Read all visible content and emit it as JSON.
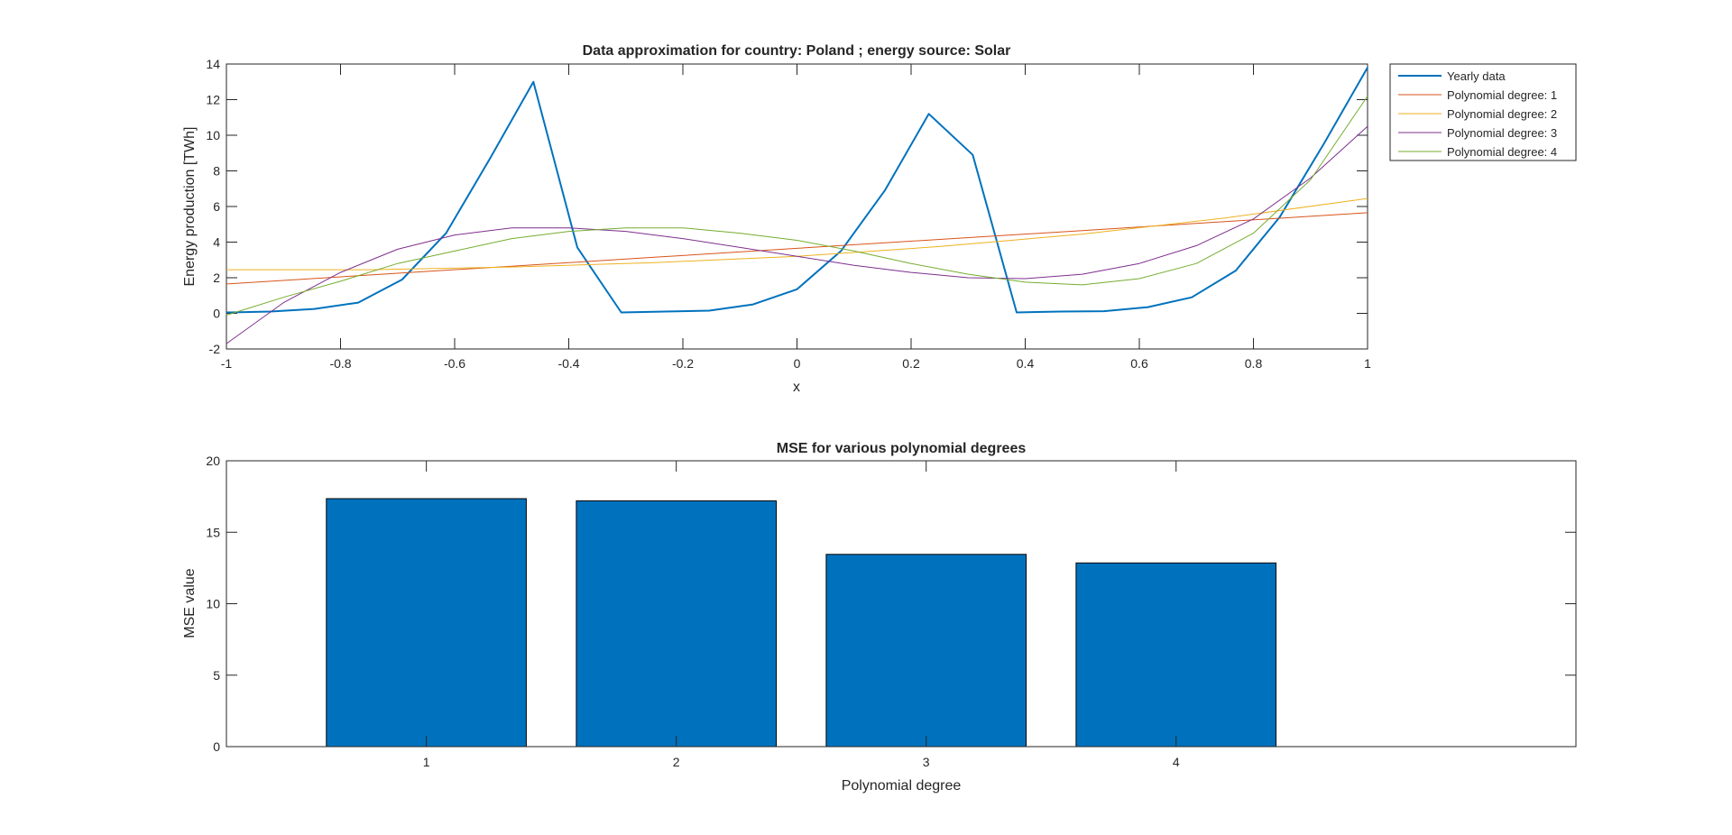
{
  "chart_data": [
    {
      "type": "line",
      "title": "Data approximation for country: Poland ; energy source: Solar",
      "xlabel": "x",
      "ylabel": "Energy production [TWh]",
      "xlim": [
        -1,
        1
      ],
      "ylim": [
        -2,
        14
      ],
      "xticks": [
        -1,
        -0.8,
        -0.6,
        -0.4,
        -0.2,
        0,
        0.2,
        0.4,
        0.6,
        0.8,
        1
      ],
      "xtick_labels": [
        "-1",
        "-0.8",
        "-0.6",
        "-0.4",
        "-0.2",
        "0",
        "0.2",
        "0.4",
        "0.6",
        "0.8",
        "1"
      ],
      "yticks": [
        -2,
        0,
        2,
        4,
        6,
        8,
        10,
        12,
        14
      ],
      "ytick_labels": [
        "-2",
        "0",
        "2",
        "4",
        "6",
        "8",
        "10",
        "12",
        "14"
      ],
      "grid": false,
      "legend_position": "outside-top-right",
      "series": [
        {
          "name": "Yearly data",
          "color": "#0072BD",
          "x": [
            -1,
            -0.923,
            -0.846,
            -0.769,
            -0.692,
            -0.615,
            -0.538,
            -0.462,
            -0.385,
            -0.308,
            -0.231,
            -0.154,
            -0.077,
            0,
            0.077,
            0.154,
            0.231,
            0.308,
            0.385,
            0.462,
            0.538,
            0.615,
            0.692,
            0.769,
            0.846,
            0.923,
            1
          ],
          "y": [
            0.05,
            0.1,
            0.25,
            0.6,
            1.9,
            4.5,
            8.7,
            13.0,
            3.7,
            0.05,
            0.1,
            0.15,
            0.5,
            1.35,
            3.5,
            6.9,
            11.2,
            8.9,
            0.05,
            0.1,
            0.12,
            0.35,
            0.9,
            2.4,
            5.4,
            9.5,
            13.8
          ]
        },
        {
          "name": "Polynomial degree: 1",
          "color": "#D95319",
          "x": [
            -1,
            -0.75,
            -0.5,
            -0.25,
            0,
            0.25,
            0.5,
            0.75,
            1
          ],
          "y": [
            1.65,
            2.15,
            2.65,
            3.15,
            3.65,
            4.15,
            4.65,
            5.15,
            5.65
          ]
        },
        {
          "name": "Polynomial degree: 2",
          "color": "#EDB120",
          "x": [
            -1,
            -0.75,
            -0.5,
            -0.25,
            0,
            0.25,
            0.5,
            0.75,
            1
          ],
          "y": [
            2.45,
            2.45,
            2.6,
            2.85,
            3.2,
            3.75,
            4.45,
            5.35,
            6.45
          ]
        },
        {
          "name": "Polynomial degree: 3",
          "color": "#7E2F8E",
          "x": [
            -1,
            -0.9,
            -0.8,
            -0.7,
            -0.6,
            -0.5,
            -0.4,
            -0.3,
            -0.2,
            -0.1,
            0,
            0.1,
            0.2,
            0.3,
            0.4,
            0.5,
            0.6,
            0.7,
            0.8,
            0.9,
            1
          ],
          "y": [
            -1.7,
            0.6,
            2.3,
            3.6,
            4.4,
            4.8,
            4.8,
            4.6,
            4.2,
            3.7,
            3.2,
            2.7,
            2.3,
            2.0,
            1.95,
            2.2,
            2.8,
            3.8,
            5.3,
            7.6,
            10.5
          ]
        },
        {
          "name": "Polynomial degree: 4",
          "color": "#77AC30",
          "x": [
            -1,
            -0.9,
            -0.8,
            -0.7,
            -0.6,
            -0.5,
            -0.4,
            -0.3,
            -0.2,
            -0.1,
            0,
            0.1,
            0.2,
            0.3,
            0.4,
            0.5,
            0.6,
            0.7,
            0.8,
            0.9,
            1
          ],
          "y": [
            -0.1,
            0.9,
            1.8,
            2.8,
            3.5,
            4.2,
            4.6,
            4.8,
            4.8,
            4.5,
            4.1,
            3.5,
            2.8,
            2.2,
            1.75,
            1.6,
            1.95,
            2.8,
            4.5,
            7.5,
            12.2
          ]
        }
      ]
    },
    {
      "type": "bar",
      "title": "MSE for various polynomial degrees",
      "xlabel": "Polynomial degree",
      "ylabel": "MSE value",
      "xlim": [
        0.2,
        5.6
      ],
      "ylim": [
        0,
        20
      ],
      "categories": [
        "1",
        "2",
        "3",
        "4"
      ],
      "x": [
        1,
        2,
        3,
        4
      ],
      "values": [
        17.35,
        17.2,
        13.45,
        12.85
      ],
      "color": "#0072BD",
      "yticks": [
        0,
        5,
        10,
        15,
        20
      ],
      "ytick_labels": [
        "0",
        "5",
        "10",
        "15",
        "20"
      ],
      "grid": false
    }
  ]
}
